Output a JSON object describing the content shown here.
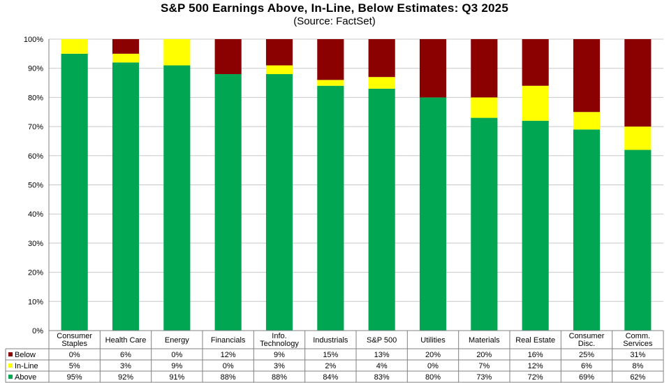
{
  "colors": {
    "above": "#00a651",
    "inline": "#ffff00",
    "below": "#8b0000",
    "grid": "#c8c8c8",
    "axis": "#808080"
  },
  "chart_data": {
    "type": "bar",
    "stacked": true,
    "title": "S&P 500 Earnings Above, In-Line, Below Estimates: Q3 2025",
    "subtitle": "(Source: FactSet)",
    "categories": [
      [
        "Consumer",
        "Staples"
      ],
      [
        "Health Care"
      ],
      [
        "Energy"
      ],
      [
        "Financials"
      ],
      [
        "Info.",
        "Technology"
      ],
      [
        "Industrials"
      ],
      [
        "S&P 500"
      ],
      [
        "Utilities"
      ],
      [
        "Materials"
      ],
      [
        "Real Estate"
      ],
      [
        "Consumer",
        "Disc."
      ],
      [
        "Comm.",
        "Services"
      ]
    ],
    "ylim": [
      0,
      100
    ],
    "yticks": [
      "0%",
      "10%",
      "20%",
      "30%",
      "40%",
      "50%",
      "60%",
      "70%",
      "80%",
      "90%",
      "100%"
    ],
    "grid": true,
    "legend": "table-bottom",
    "series": [
      {
        "name": "Below",
        "color_key": "below",
        "values": [
          0,
          6,
          0,
          12,
          9,
          15,
          13,
          20,
          20,
          16,
          25,
          31
        ],
        "labels": [
          "0%",
          "6%",
          "0%",
          "12%",
          "9%",
          "15%",
          "13%",
          "20%",
          "20%",
          "16%",
          "25%",
          "31%"
        ]
      },
      {
        "name": "In-Line",
        "color_key": "inline",
        "values": [
          5,
          3,
          9,
          0,
          3,
          2,
          4,
          0,
          7,
          12,
          6,
          8
        ],
        "labels": [
          "5%",
          "3%",
          "9%",
          "0%",
          "3%",
          "2%",
          "4%",
          "0%",
          "7%",
          "12%",
          "6%",
          "8%"
        ]
      },
      {
        "name": "Above",
        "color_key": "above",
        "values": [
          95,
          92,
          91,
          88,
          88,
          84,
          83,
          80,
          73,
          72,
          69,
          62
        ],
        "labels": [
          "95%",
          "92%",
          "91%",
          "88%",
          "88%",
          "84%",
          "83%",
          "80%",
          "73%",
          "72%",
          "69%",
          "62%"
        ]
      }
    ]
  }
}
